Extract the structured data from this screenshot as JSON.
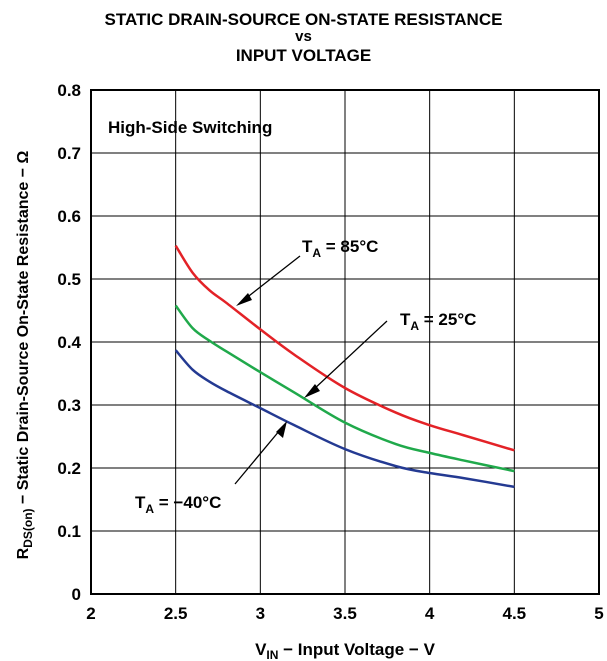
{
  "chart_data": {
    "type": "line",
    "title_lines": [
      "STATIC DRAIN-SOURCE ON-STATE RESISTANCE",
      "vs",
      "INPUT VOLTAGE"
    ],
    "xlabel": {
      "main": "V",
      "sub": "IN",
      "rest": " − Input Voltage − V"
    },
    "ylabel": {
      "main": "R",
      "sub": "DS(on)",
      "rest": " − Static Drain-Source On-State Resistance − Ω"
    },
    "xlim": [
      2,
      5
    ],
    "ylim": [
      0,
      0.8
    ],
    "xticks": [
      2,
      2.5,
      3,
      3.5,
      4,
      4.5,
      5
    ],
    "xtick_labels": [
      "2",
      "2.5",
      "3",
      "3.5",
      "4",
      "4.5",
      "5"
    ],
    "yticks": [
      0,
      0.1,
      0.2,
      0.3,
      0.4,
      0.5,
      0.6,
      0.7,
      0.8
    ],
    "ytick_labels": [
      "0",
      "0.1",
      "0.2",
      "0.3",
      "0.4",
      "0.5",
      "0.6",
      "0.7",
      "0.8"
    ],
    "grid": true,
    "annotation": "High-Side Switching",
    "series": [
      {
        "color": "#e32227",
        "x": [
          2.5,
          2.6,
          2.7,
          2.8,
          3.0,
          3.2,
          3.5,
          3.8,
          4.0,
          4.2,
          4.5
        ],
        "y": [
          0.553,
          0.51,
          0.482,
          0.462,
          0.42,
          0.38,
          0.327,
          0.288,
          0.268,
          0.252,
          0.228
        ],
        "label": {
          "main": "T",
          "sub": "A",
          "rest": " = 85°C"
        }
      },
      {
        "color": "#20a94b",
        "x": [
          2.5,
          2.6,
          2.7,
          2.8,
          3.0,
          3.2,
          3.5,
          3.8,
          4.0,
          4.2,
          4.5
        ],
        "y": [
          0.458,
          0.422,
          0.402,
          0.385,
          0.352,
          0.32,
          0.272,
          0.238,
          0.224,
          0.212,
          0.195
        ],
        "label": {
          "main": "T",
          "sub": "A",
          "rest": " = 25°C"
        }
      },
      {
        "color": "#243a92",
        "x": [
          2.5,
          2.6,
          2.7,
          2.8,
          3.0,
          3.2,
          3.5,
          3.8,
          4.0,
          4.2,
          4.5
        ],
        "y": [
          0.387,
          0.356,
          0.337,
          0.322,
          0.295,
          0.268,
          0.23,
          0.203,
          0.192,
          0.184,
          0.17
        ],
        "label": {
          "main": "T",
          "sub": "A",
          "rest": " = −40°C"
        }
      }
    ]
  }
}
